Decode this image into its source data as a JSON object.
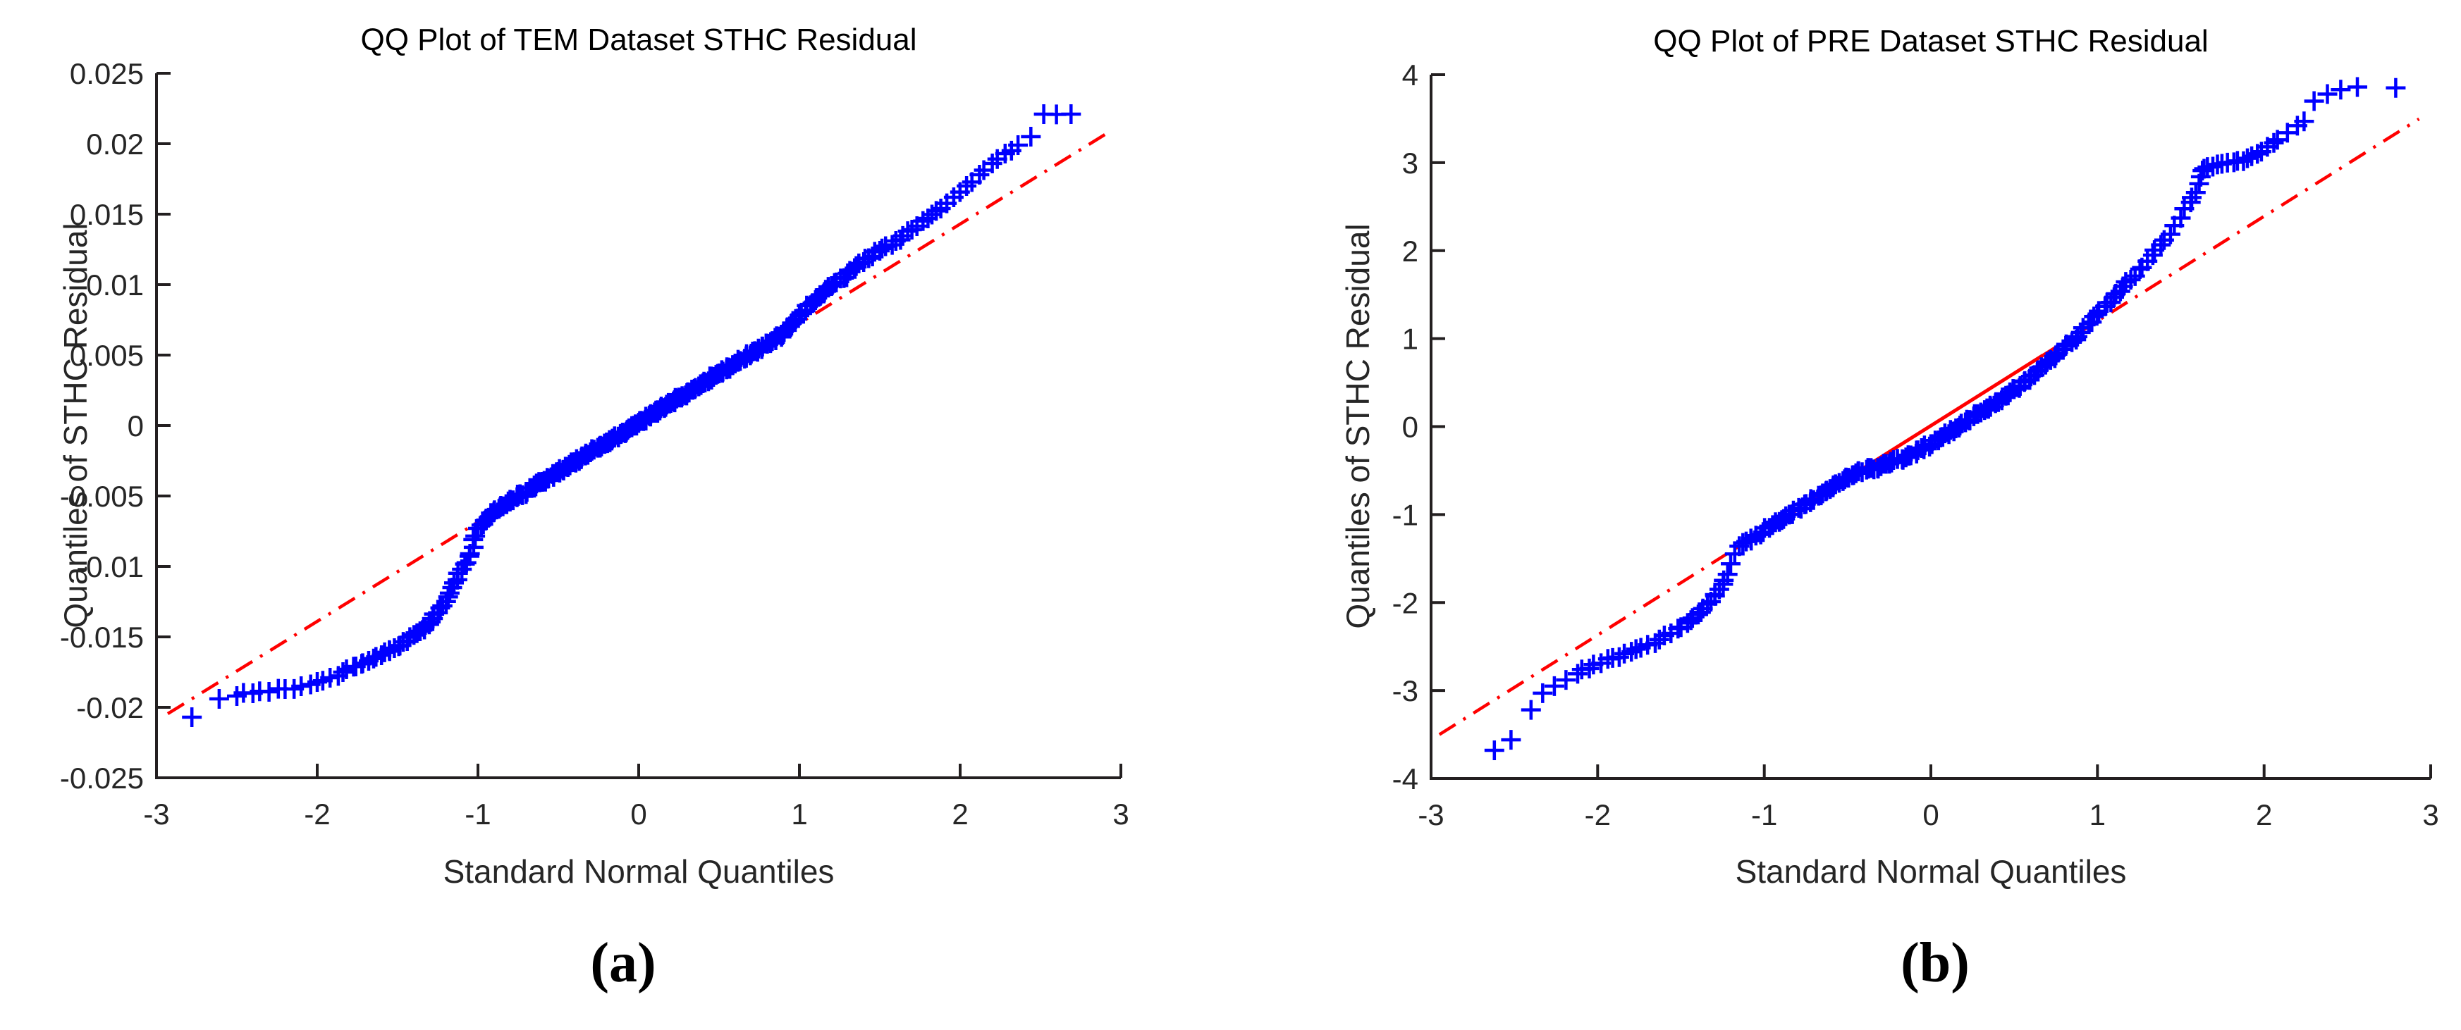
{
  "page": {
    "background": "#ffffff"
  },
  "figure": {
    "marker_color": "#0000ff",
    "ref_line_color": "#ff0000",
    "axis_color": "#231f20",
    "tick_label_color": "#262626"
  },
  "chart_data": [
    {
      "type": "scatter",
      "panel": "left",
      "caption": "(a)",
      "title": "QQ Plot of TEM Dataset STHC Residual",
      "xlabel": "Standard Normal Quantiles",
      "ylabel": "Quantiles of STHC Residual",
      "xlim": [
        -3,
        3
      ],
      "ylim": [
        -0.025,
        0.025
      ],
      "grid": false,
      "legend": false,
      "xticks": [
        -3,
        -2,
        -1,
        0,
        1,
        2,
        3
      ],
      "xtick_labels": [
        "-3",
        "-2",
        "-1",
        "0",
        "1",
        "2",
        "3"
      ],
      "yticks": [
        -0.025,
        -0.02,
        -0.015,
        -0.01,
        -0.005,
        0,
        0.005,
        0.01,
        0.015,
        0.02,
        0.025
      ],
      "ytick_labels": [
        "-0.025",
        "-0.02",
        "-0.015",
        "-0.01",
        "-0.005",
        "0",
        "0.005",
        "0.01",
        "0.015",
        "0.02",
        "0.025"
      ],
      "ref_line": {
        "color": "#ff0000",
        "slope": 0.00705,
        "intercept": 0.0002,
        "x_range": [
          -2.93,
          2.9
        ],
        "solid_x_range": [
          -0.6745,
          0.6745
        ],
        "style": "solid between quartiles, dash-dot extensions"
      },
      "marker_density": 270,
      "series": [
        {
          "name": "TEM STHC residual quantiles",
          "marker": "+",
          "color": "#0000ff",
          "points": [
            [
              -2.78,
              -0.0207
            ],
            [
              -2.61,
              -0.0194
            ],
            [
              -2.5,
              -0.0192
            ],
            [
              -2.4,
              -0.019
            ],
            [
              -2.3,
              -0.0189
            ],
            [
              -2.2,
              -0.0187
            ],
            [
              -2.1,
              -0.0185
            ],
            [
              -2.0,
              -0.0182
            ],
            [
              -1.92,
              -0.0179
            ],
            [
              -1.84,
              -0.0175
            ],
            [
              -1.76,
              -0.0171
            ],
            [
              -1.68,
              -0.0167
            ],
            [
              -1.6,
              -0.0163
            ],
            [
              -1.52,
              -0.0158
            ],
            [
              -1.44,
              -0.0153
            ],
            [
              -1.36,
              -0.0146
            ],
            [
              -1.28,
              -0.0137
            ],
            [
              -1.22,
              -0.0128
            ],
            [
              -1.16,
              -0.0115
            ],
            [
              -1.1,
              -0.0102
            ],
            [
              -1.05,
              -0.0091
            ],
            [
              -1.0,
              -0.0073
            ],
            [
              -0.9,
              -0.0061
            ],
            [
              -0.8,
              -0.0054
            ],
            [
              -0.7,
              -0.0047
            ],
            [
              -0.6,
              -0.004
            ],
            [
              -0.5,
              -0.0033
            ],
            [
              -0.4,
              -0.0026
            ],
            [
              -0.3,
              -0.0019
            ],
            [
              -0.2,
              -0.0012
            ],
            [
              -0.1,
              -0.0005
            ],
            [
              0.0,
              0.0002
            ],
            [
              0.1,
              0.0009
            ],
            [
              0.2,
              0.0016
            ],
            [
              0.3,
              0.0023
            ],
            [
              0.4,
              0.003
            ],
            [
              0.5,
              0.0037
            ],
            [
              0.6,
              0.0044
            ],
            [
              0.7,
              0.0051
            ],
            [
              0.8,
              0.0058
            ],
            [
              0.9,
              0.0065
            ],
            [
              1.0,
              0.0078
            ],
            [
              1.1,
              0.0089
            ],
            [
              1.2,
              0.0099
            ],
            [
              1.3,
              0.0108
            ],
            [
              1.4,
              0.0116
            ],
            [
              1.5,
              0.0124
            ],
            [
              1.6,
              0.0131
            ],
            [
              1.7,
              0.0139
            ],
            [
              1.8,
              0.0147
            ],
            [
              1.88,
              0.0154
            ],
            [
              1.96,
              0.0162
            ],
            [
              2.04,
              0.017
            ],
            [
              2.12,
              0.0178
            ],
            [
              2.2,
              0.0186
            ],
            [
              2.28,
              0.0193
            ],
            [
              2.36,
              0.0199
            ],
            [
              2.44,
              0.0205
            ],
            [
              2.52,
              0.0221
            ],
            [
              2.69,
              0.0221
            ]
          ]
        }
      ]
    },
    {
      "type": "scatter",
      "panel": "right",
      "caption": "(b)",
      "title": "QQ Plot of PRE Dataset STHC Residual",
      "xlabel": "Standard Normal Quantiles",
      "ylabel": "Quantiles of STHC Residual",
      "xlim": [
        -3,
        3
      ],
      "ylim": [
        -4,
        4
      ],
      "grid": false,
      "legend": false,
      "xticks": [
        -3,
        -2,
        -1,
        0,
        1,
        2,
        3
      ],
      "xtick_labels": [
        "-3",
        "-2",
        "-1",
        "0",
        "1",
        "2",
        "3"
      ],
      "yticks": [
        -4,
        -3,
        -2,
        -1,
        0,
        1,
        2,
        3,
        4
      ],
      "ytick_labels": [
        "-4",
        "-3",
        "-2",
        "-1",
        "0",
        "1",
        "2",
        "3",
        "4"
      ],
      "ref_line": {
        "color": "#ff0000",
        "slope": 1.19,
        "intercept": 0.01,
        "x_range": [
          -2.95,
          2.93
        ],
        "solid_x_range": [
          -0.6745,
          0.6745
        ],
        "style": "solid between quartiles, dash-dot extensions"
      },
      "marker_density": 175,
      "series": [
        {
          "name": "PRE STHC residual quantiles",
          "marker": "+",
          "color": "#0000ff",
          "points": [
            [
              -2.62,
              -3.68
            ],
            [
              -2.52,
              -3.56
            ],
            [
              -2.4,
              -3.22
            ],
            [
              -2.33,
              -3.03
            ],
            [
              -2.26,
              -2.95
            ],
            [
              -2.19,
              -2.88
            ],
            [
              -2.12,
              -2.81
            ],
            [
              -2.05,
              -2.75
            ],
            [
              -1.98,
              -2.69
            ],
            [
              -1.91,
              -2.63
            ],
            [
              -1.84,
              -2.58
            ],
            [
              -1.77,
              -2.53
            ],
            [
              -1.7,
              -2.48
            ],
            [
              -1.63,
              -2.42
            ],
            [
              -1.56,
              -2.35
            ],
            [
              -1.5,
              -2.28
            ],
            [
              -1.44,
              -2.2
            ],
            [
              -1.38,
              -2.11
            ],
            [
              -1.32,
              -1.99
            ],
            [
              -1.27,
              -1.85
            ],
            [
              -1.22,
              -1.68
            ],
            [
              -1.15,
              -1.36
            ],
            [
              -1.05,
              -1.24
            ],
            [
              -0.95,
              -1.12
            ],
            [
              -0.85,
              -1.0
            ],
            [
              -0.75,
              -0.88
            ],
            [
              -0.65,
              -0.76
            ],
            [
              -0.55,
              -0.64
            ],
            [
              -0.45,
              -0.53
            ],
            [
              -0.3,
              -0.45
            ],
            [
              -0.15,
              -0.35
            ],
            [
              0.0,
              -0.2
            ],
            [
              0.15,
              -0.02
            ],
            [
              0.3,
              0.16
            ],
            [
              0.45,
              0.35
            ],
            [
              0.6,
              0.57
            ],
            [
              0.75,
              0.81
            ],
            [
              0.9,
              1.07
            ],
            [
              1.0,
              1.28
            ],
            [
              1.1,
              1.47
            ],
            [
              1.2,
              1.67
            ],
            [
              1.3,
              1.88
            ],
            [
              1.4,
              2.12
            ],
            [
              1.5,
              2.37
            ],
            [
              1.56,
              2.55
            ],
            [
              1.59,
              2.66
            ],
            [
              1.61,
              2.76
            ],
            [
              1.62,
              2.84
            ],
            [
              1.63,
              2.91
            ],
            [
              1.66,
              2.95
            ],
            [
              1.72,
              2.98
            ],
            [
              1.78,
              3.0
            ],
            [
              1.84,
              3.02
            ],
            [
              1.9,
              3.05
            ],
            [
              1.96,
              3.1
            ],
            [
              2.02,
              3.18
            ],
            [
              2.08,
              3.26
            ],
            [
              2.14,
              3.34
            ],
            [
              2.2,
              3.42
            ],
            [
              2.24,
              3.47
            ],
            [
              2.3,
              3.7
            ],
            [
              2.38,
              3.78
            ],
            [
              2.46,
              3.83
            ],
            [
              2.56,
              3.86
            ],
            [
              2.79,
              3.85
            ]
          ]
        }
      ]
    }
  ]
}
